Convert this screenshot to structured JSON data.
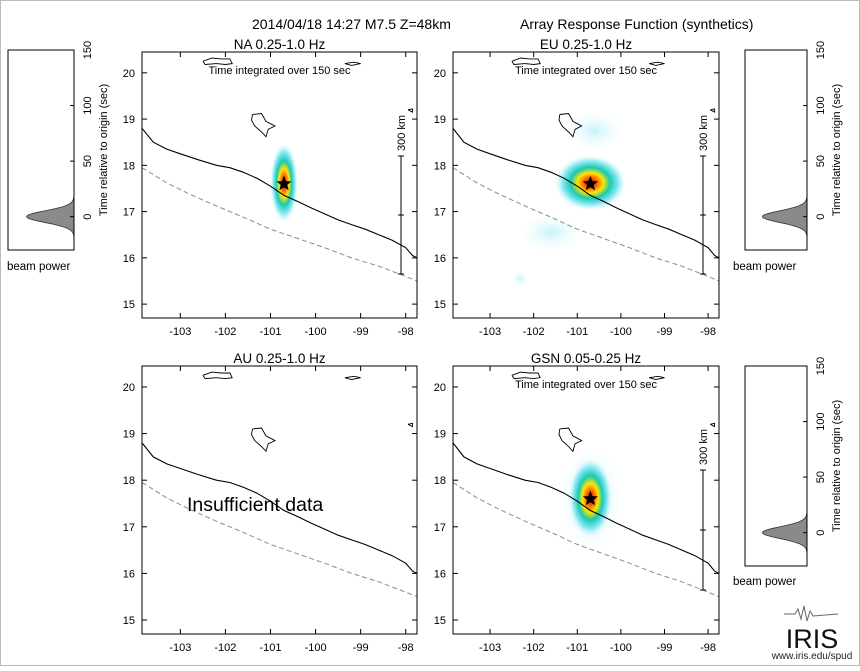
{
  "header": {
    "event": "2014/04/18 14:27  M7.5  Z=48km",
    "product": "Array Response Function (synthetics)"
  },
  "colors": {
    "coast": "#000000",
    "trench": "#8c8c8c",
    "beam_fill": "#8a8a8a",
    "star": "#000000"
  },
  "axis_common": {
    "x_ticks": [
      "-103",
      "-102",
      "-101",
      "-100",
      "-99",
      "-98"
    ],
    "y_ticks": [
      "15",
      "16",
      "17",
      "18",
      "19",
      "20"
    ],
    "xlim": [
      -103.85,
      -97.75
    ],
    "ylim": [
      14.7,
      20.45
    ]
  },
  "scale_bar": "300 km",
  "integration_note": "Time integrated over 150 sec",
  "beam": {
    "ylabel": "Time relative to origin (sec)",
    "xlabel": "beam power",
    "ticks": [
      "0",
      "50",
      "100",
      "150"
    ],
    "ylim": [
      -30,
      150
    ]
  },
  "epicenter": {
    "lon": -100.7,
    "lat": 17.6
  },
  "chart_data": [
    {
      "type": "heatmap",
      "title": "NA  0.25-1.0 Hz",
      "subtitle": "Time integrated over 150 sec",
      "xlabel": "",
      "ylabel": "",
      "has_data": true,
      "peak": {
        "lon": -100.7,
        "lat": 17.62
      },
      "note": ""
    },
    {
      "type": "heatmap",
      "title": "EU  0.25-1.0 Hz",
      "subtitle": "Time integrated over 150 sec",
      "xlabel": "",
      "ylabel": "",
      "has_data": true,
      "peak": {
        "lon": -100.7,
        "lat": 17.62
      },
      "note": ""
    },
    {
      "type": "heatmap",
      "title": "AU  0.25-1.0 Hz",
      "subtitle": "",
      "xlabel": "",
      "ylabel": "",
      "has_data": false,
      "note": "Insufficient data"
    },
    {
      "type": "heatmap",
      "title": "GSN  0.05-0.25 Hz",
      "subtitle": "Time integrated over 150 sec",
      "xlabel": "",
      "ylabel": "",
      "has_data": true,
      "peak": {
        "lon": -100.7,
        "lat": 17.62
      },
      "note": ""
    },
    {
      "type": "area",
      "title": "",
      "xlabel": "beam power",
      "ylabel": "Time relative to origin (sec)",
      "ylim": [
        -30,
        150
      ],
      "peak_time": 0,
      "series": []
    },
    {
      "type": "area",
      "title": "",
      "xlabel": "beam power",
      "ylabel": "Time relative to origin (sec)",
      "ylim": [
        -30,
        150
      ],
      "peak_time": 0,
      "series": []
    },
    {
      "type": "area",
      "title": "",
      "xlabel": "beam power",
      "ylabel": "Time relative to origin (sec)",
      "ylim": [
        -30,
        150
      ],
      "peak_time": 0,
      "series": []
    }
  ],
  "logo": {
    "text": "IRIS",
    "url_text": "www.iris.edu/spud"
  }
}
